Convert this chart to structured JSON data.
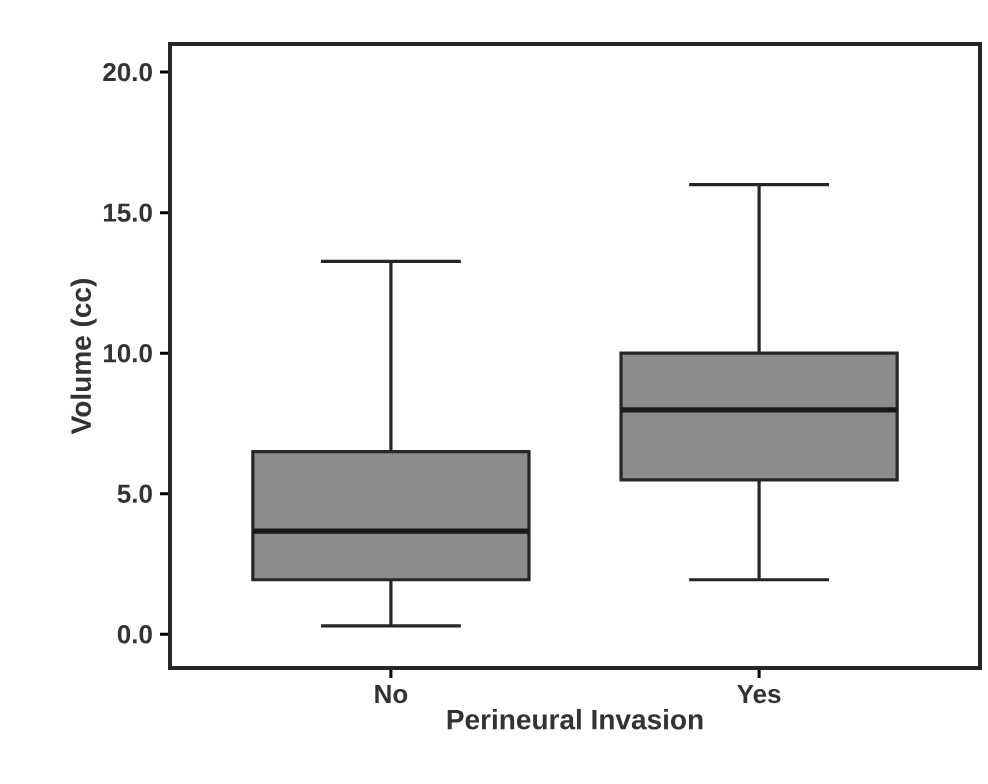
{
  "chart_data": {
    "type": "box",
    "xlabel": "Perineural Invasion",
    "ylabel": "Volume (cc)",
    "categories": [
      "No",
      "Yes"
    ],
    "boxes": [
      {
        "low": 0.3,
        "q1": 1.94,
        "median": 3.67,
        "q3": 6.5,
        "high": 13.27
      },
      {
        "low": 1.94,
        "q1": 5.49,
        "median": 7.98,
        "q3": 10.0,
        "high": 16.0
      }
    ],
    "color": "#8c8c8c",
    "ylim": [
      -1.2,
      21
    ],
    "yticks": [
      {
        "value": 0,
        "label": "0.0"
      },
      {
        "value": 5,
        "label": "5.0"
      },
      {
        "value": 10,
        "label": "10.0"
      },
      {
        "value": 15,
        "label": "15.0"
      },
      {
        "value": 20,
        "label": "20.0"
      }
    ]
  }
}
